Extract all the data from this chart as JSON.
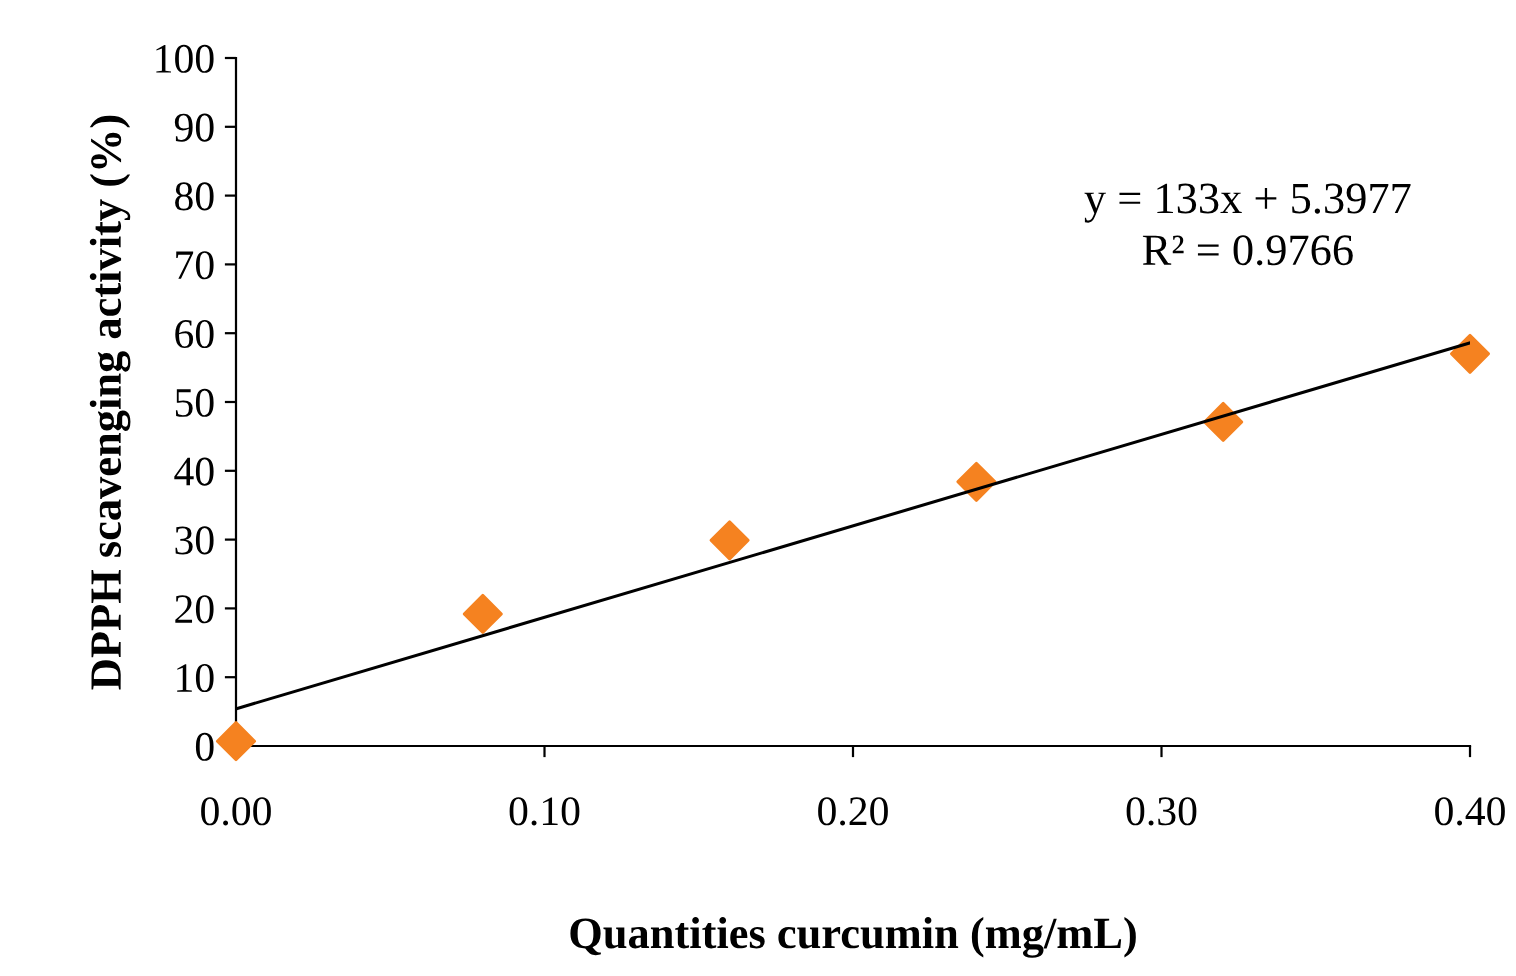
{
  "chart_data": {
    "type": "scatter",
    "xlabel": "Quantities curcumin (mg/mL)",
    "ylabel": "DPPH scavenging activity (%)",
    "x": [
      0,
      0.08,
      0.16,
      0.24,
      0.32,
      0.4
    ],
    "series": [
      {
        "color": "#f58220",
        "marker": "diamond",
        "values": [
          0.7,
          19.2,
          29.9,
          38.4,
          47.1,
          57.0
        ]
      },
      {
        "type": "line",
        "color": "#000000",
        "x": [
          0,
          0.4
        ],
        "values": [
          5.4,
          58.6
        ],
        "marker": "none",
        "line_style": "solid"
      }
    ],
    "annotations": [
      "y = 133x + 5.3977",
      "R² = 0.9766"
    ],
    "xlim": [
      0,
      0.4
    ],
    "xticks": [
      {
        "value": 0,
        "label": "0.00"
      },
      {
        "value": 0.1,
        "label": "0.10"
      },
      {
        "value": 0.2,
        "label": "0.20"
      },
      {
        "value": 0.3,
        "label": "0.30"
      },
      {
        "value": 0.4,
        "label": "0.40"
      }
    ],
    "ylim": [
      0,
      100
    ],
    "yticks": [
      0,
      10,
      20,
      30,
      40,
      50,
      60,
      70,
      80,
      90,
      100
    ],
    "grid": false,
    "legend": false
  }
}
